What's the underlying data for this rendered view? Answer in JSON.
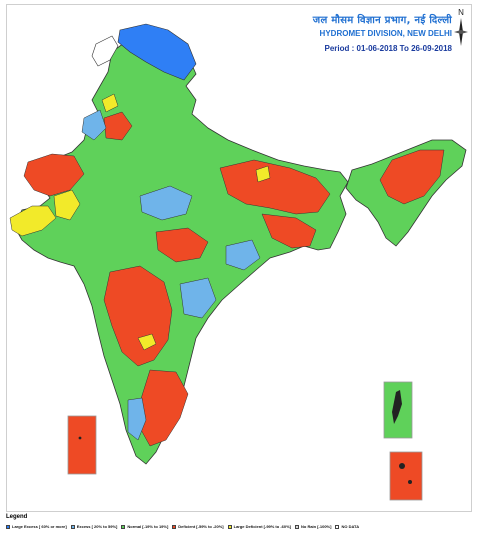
{
  "header": {
    "title_hindi": "जल मौसम विज्ञान प्रभाग, नई दिल्ली",
    "title_english": "HYDROMET DIVISION, NEW DELHI",
    "period": "Period : 01-06-2018 To 26-09-2018"
  },
  "compass": {
    "north_label": "N"
  },
  "legend": {
    "title": "Legend",
    "items": [
      {
        "label": "Large Excess [ 60% or more]",
        "color": "#2f7ff5"
      },
      {
        "label": "Excess [ 20% to 59%]",
        "color": "#6fb4ea"
      },
      {
        "label": "Normal [-19% to 19%]",
        "color": "#5fd15a"
      },
      {
        "label": "Deficient [-59% to -20%]",
        "color": "#ee4a25"
      },
      {
        "label": "Large Deficient [-99% to -60%]",
        "color": "#f2ea2a"
      },
      {
        "label": "No Rain [-100%]",
        "color": "#d9d9d9"
      },
      {
        "label": "NO DATA",
        "color": "#ffffff"
      }
    ]
  },
  "map": {
    "colors": {
      "large_excess": "#2f7ff5",
      "excess": "#6fb4ea",
      "normal": "#5fd15a",
      "deficient": "#ee4a25",
      "large_deficient": "#f2ea2a",
      "no_data": "#ffffff",
      "border": "#333333"
    }
  }
}
